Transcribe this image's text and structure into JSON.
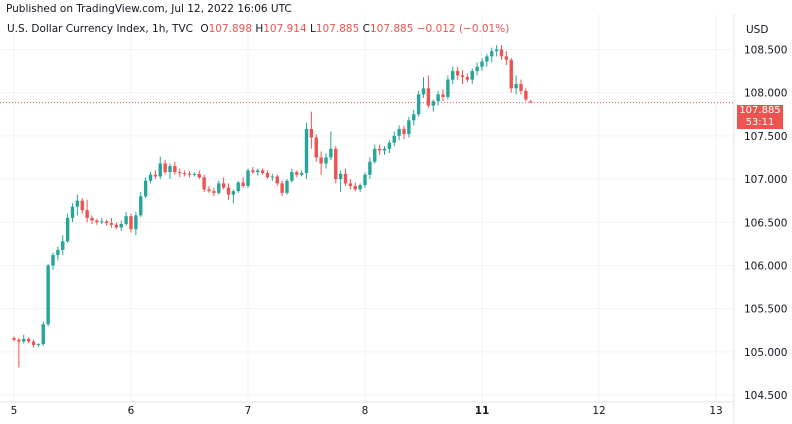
{
  "header": {
    "published": "Published on TradingView.com, Jul 12, 2022 16:06 UTC"
  },
  "legend": {
    "symbol": "U.S. Dollar Currency Index, 1h, TVC",
    "o_label": "O",
    "o_value": "107.898",
    "h_label": "H",
    "h_value": "107.914",
    "l_label": "L",
    "l_value": "107.885",
    "c_label": "C",
    "c_value": "107.885",
    "change": "−0.012 (−0.01%)"
  },
  "axis": {
    "currency": "USD",
    "last_price": "107.885",
    "countdown": "53:11"
  },
  "colors": {
    "up": "#26a69a",
    "down": "#ef5350",
    "grid": "#f0f3fa",
    "text": "#131722"
  },
  "chart_data": {
    "type": "candlestick",
    "interval": "1h",
    "y_ticks": [
      104.5,
      105.0,
      105.5,
      106.0,
      106.5,
      107.0,
      107.5,
      108.0,
      108.5
    ],
    "y_tick_labels": [
      "104.500",
      "105.000",
      "105.500",
      "106.000",
      "106.500",
      "107.000",
      "107.500",
      "108.000",
      "108.500"
    ],
    "ylim": [
      104.42,
      108.91
    ],
    "x_ticks": [
      "5",
      "6",
      "7",
      "8",
      "11",
      "12",
      "13"
    ],
    "x_tick_positions": [
      0,
      24,
      48,
      72,
      96,
      120,
      144
    ],
    "last_price_line": 107.885,
    "candles": [
      [
        105.16,
        105.18,
        105.12,
        105.14
      ],
      [
        105.14,
        105.16,
        104.82,
        105.12
      ],
      [
        105.12,
        105.2,
        105.1,
        105.15
      ],
      [
        105.15,
        105.17,
        105.1,
        105.12
      ],
      [
        105.12,
        105.14,
        105.05,
        105.08
      ],
      [
        105.08,
        105.1,
        105.06,
        105.09
      ],
      [
        105.09,
        105.35,
        105.07,
        105.32
      ],
      [
        105.32,
        106.02,
        105.3,
        106.0
      ],
      [
        106.0,
        106.15,
        105.95,
        106.12
      ],
      [
        106.12,
        106.22,
        106.06,
        106.18
      ],
      [
        106.18,
        106.35,
        106.12,
        106.28
      ],
      [
        106.28,
        106.6,
        106.26,
        106.55
      ],
      [
        106.55,
        106.72,
        106.5,
        106.68
      ],
      [
        106.68,
        106.82,
        106.58,
        106.75
      ],
      [
        106.75,
        106.78,
        106.6,
        106.64
      ],
      [
        106.64,
        106.76,
        106.5,
        106.55
      ],
      [
        106.55,
        106.58,
        106.48,
        106.52
      ],
      [
        106.52,
        106.54,
        106.47,
        106.5
      ],
      [
        106.5,
        106.55,
        106.48,
        106.51
      ],
      [
        106.51,
        106.53,
        106.46,
        106.49
      ],
      [
        106.49,
        106.55,
        106.44,
        106.47
      ],
      [
        106.47,
        106.5,
        106.42,
        106.44
      ],
      [
        106.44,
        106.52,
        106.4,
        106.48
      ],
      [
        106.48,
        106.62,
        106.46,
        106.57
      ],
      [
        106.57,
        106.6,
        106.38,
        106.42
      ],
      [
        106.42,
        106.62,
        106.35,
        106.58
      ],
      [
        106.58,
        106.85,
        106.56,
        106.8
      ],
      [
        106.8,
        107.02,
        106.78,
        106.98
      ],
      [
        106.98,
        107.08,
        106.95,
        107.05
      ],
      [
        107.05,
        107.1,
        107.0,
        107.03
      ],
      [
        107.03,
        107.26,
        107.0,
        107.18
      ],
      [
        107.18,
        107.22,
        107.05,
        107.08
      ],
      [
        107.08,
        107.18,
        107.0,
        107.15
      ],
      [
        107.15,
        107.2,
        107.05,
        107.08
      ],
      [
        107.08,
        107.12,
        107.02,
        107.07
      ],
      [
        107.07,
        107.1,
        107.03,
        107.06
      ],
      [
        107.06,
        107.09,
        107.02,
        107.05
      ],
      [
        107.05,
        107.08,
        107.03,
        107.06
      ],
      [
        107.06,
        107.1,
        107.0,
        107.02
      ],
      [
        107.02,
        107.05,
        106.85,
        106.88
      ],
      [
        106.88,
        106.92,
        106.84,
        106.86
      ],
      [
        106.86,
        106.9,
        106.8,
        106.84
      ],
      [
        106.84,
        106.98,
        106.82,
        106.95
      ],
      [
        106.95,
        107.02,
        106.88,
        106.9
      ],
      [
        106.9,
        106.95,
        106.76,
        106.82
      ],
      [
        106.82,
        106.88,
        106.72,
        106.86
      ],
      [
        106.86,
        106.98,
        106.84,
        106.96
      ],
      [
        106.96,
        107.02,
        106.9,
        106.92
      ],
      [
        106.92,
        107.12,
        106.9,
        107.1
      ],
      [
        107.1,
        107.14,
        107.06,
        107.08
      ],
      [
        107.08,
        107.12,
        107.04,
        107.1
      ],
      [
        107.1,
        107.12,
        107.05,
        107.07
      ],
      [
        107.07,
        107.1,
        107.0,
        107.02
      ],
      [
        107.02,
        107.06,
        106.98,
        107.03
      ],
      [
        107.03,
        107.05,
        106.92,
        106.95
      ],
      [
        106.95,
        106.98,
        106.8,
        106.84
      ],
      [
        106.84,
        107.0,
        106.82,
        106.98
      ],
      [
        106.98,
        107.12,
        106.96,
        107.08
      ],
      [
        107.08,
        107.1,
        107.02,
        107.05
      ],
      [
        107.05,
        107.1,
        107.03,
        107.07
      ],
      [
        107.07,
        107.65,
        107.0,
        107.58
      ],
      [
        107.58,
        107.78,
        107.35,
        107.48
      ],
      [
        107.48,
        107.52,
        107.2,
        107.25
      ],
      [
        107.25,
        107.32,
        107.05,
        107.18
      ],
      [
        107.18,
        107.3,
        107.12,
        107.25
      ],
      [
        107.25,
        107.55,
        107.22,
        107.35
      ],
      [
        107.35,
        107.38,
        106.95,
        107.0
      ],
      [
        107.0,
        107.1,
        106.85,
        107.06
      ],
      [
        107.06,
        107.12,
        106.92,
        106.95
      ],
      [
        106.95,
        107.0,
        106.88,
        106.92
      ],
      [
        106.92,
        106.96,
        106.86,
        106.88
      ],
      [
        106.88,
        106.95,
        106.85,
        106.93
      ],
      [
        106.93,
        107.08,
        106.9,
        107.05
      ],
      [
        107.05,
        107.25,
        107.0,
        107.2
      ],
      [
        107.2,
        107.4,
        107.18,
        107.35
      ],
      [
        107.35,
        107.4,
        107.28,
        107.33
      ],
      [
        107.33,
        107.38,
        107.28,
        107.35
      ],
      [
        107.35,
        107.45,
        107.3,
        107.42
      ],
      [
        107.42,
        107.55,
        107.38,
        107.5
      ],
      [
        107.5,
        107.62,
        107.45,
        107.58
      ],
      [
        107.58,
        107.62,
        107.46,
        107.52
      ],
      [
        107.52,
        107.72,
        107.48,
        107.68
      ],
      [
        107.68,
        107.8,
        107.62,
        107.75
      ],
      [
        107.75,
        108.02,
        107.72,
        107.98
      ],
      [
        107.98,
        108.18,
        107.94,
        108.05
      ],
      [
        108.05,
        108.2,
        107.82,
        107.85
      ],
      [
        107.85,
        107.92,
        107.78,
        107.9
      ],
      [
        107.9,
        108.02,
        107.85,
        107.98
      ],
      [
        107.98,
        108.04,
        107.9,
        107.95
      ],
      [
        107.95,
        108.2,
        107.92,
        108.15
      ],
      [
        108.15,
        108.3,
        108.1,
        108.25
      ],
      [
        108.25,
        108.3,
        108.15,
        108.2
      ],
      [
        108.2,
        108.26,
        108.1,
        108.18
      ],
      [
        108.18,
        108.22,
        108.12,
        108.15
      ],
      [
        108.15,
        108.28,
        108.1,
        108.25
      ],
      [
        108.25,
        108.35,
        108.2,
        108.3
      ],
      [
        108.3,
        108.4,
        108.25,
        108.36
      ],
      [
        108.36,
        108.45,
        108.3,
        108.42
      ],
      [
        108.42,
        108.52,
        108.35,
        108.48
      ],
      [
        108.48,
        108.55,
        108.42,
        108.5
      ],
      [
        108.5,
        108.55,
        108.38,
        108.42
      ],
      [
        108.42,
        108.48,
        108.32,
        108.38
      ],
      [
        108.38,
        108.4,
        108.0,
        108.05
      ],
      [
        108.05,
        108.2,
        107.98,
        108.1
      ],
      [
        108.1,
        108.15,
        107.98,
        108.02
      ],
      [
        108.02,
        108.05,
        107.9,
        107.92
      ],
      [
        107.898,
        107.914,
        107.885,
        107.885
      ]
    ]
  }
}
